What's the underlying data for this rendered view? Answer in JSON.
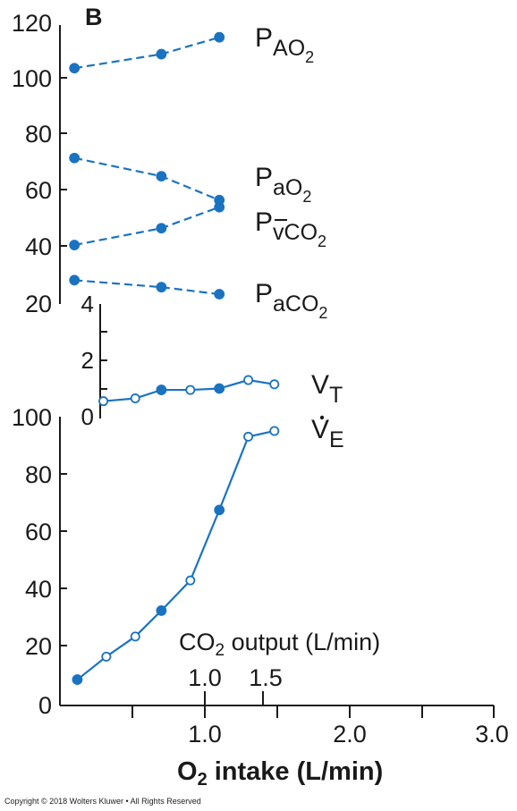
{
  "panel_letter": "B",
  "x_axis": {
    "label_main": "O",
    "label_sub": "2",
    "label_rest": " intake (L/min)",
    "ticks": [
      "1.0",
      "2.0",
      "3.0"
    ],
    "range": [
      0,
      3.0
    ]
  },
  "co2_axis": {
    "label_main": "CO",
    "label_sub": "2",
    "label_rest": " output (L/min)",
    "ticks": [
      "1.0",
      "1.5"
    ]
  },
  "series_labels": {
    "PAO2": {
      "main": "P",
      "sub": "AO",
      "subsub": "2"
    },
    "PaO2": {
      "main": "P",
      "sub": "aO",
      "subsub": "2"
    },
    "PvCO2": {
      "main": "P",
      "sub": "v",
      "sub_rest": "CO",
      "subsub": "2"
    },
    "PaCO2": {
      "main": "P",
      "sub": "aCO",
      "subsub": "2"
    },
    "VT": {
      "main": "V",
      "sub": "T"
    },
    "VE": {
      "main": "V",
      "sub": "E"
    }
  },
  "copyright": "Copyright © 2018 Wolters Kluwer • All Rights Reserved",
  "colors": {
    "series": "#1a73c1",
    "axis": "#1a1a1a"
  },
  "chart_data": [
    {
      "type": "line",
      "title": "",
      "xlabel": "O2 intake (L/min)",
      "ylabel": "",
      "xlim": [
        0,
        3.0
      ],
      "ylim": [
        20,
        120
      ],
      "ticks": [
        "20",
        "40",
        "60",
        "80",
        "100",
        "120"
      ],
      "line_style": "dashed",
      "series": [
        {
          "name": "PAO2",
          "x": [
            0.1,
            0.7,
            1.1
          ],
          "y": [
            104,
            109,
            115
          ],
          "markers": [
            "filled",
            "filled",
            "filled"
          ]
        },
        {
          "name": "PaO2",
          "x": [
            0.1,
            0.7,
            1.1
          ],
          "y": [
            72,
            65.5,
            57
          ],
          "markers": [
            "filled",
            "filled",
            "filled"
          ]
        },
        {
          "name": "PvCO2",
          "x": [
            0.1,
            0.7,
            1.1
          ],
          "y": [
            41,
            47,
            54.5
          ],
          "markers": [
            "filled",
            "filled",
            "filled"
          ]
        },
        {
          "name": "PaCO2",
          "x": [
            0.1,
            0.7,
            1.1
          ],
          "y": [
            28.5,
            26,
            23.5
          ],
          "markers": [
            "filled",
            "filled",
            "filled"
          ]
        }
      ]
    },
    {
      "type": "line",
      "title": "",
      "xlabel": "O2 intake (L/min)",
      "ylabel": "",
      "xlim": [
        0,
        3.0
      ],
      "ylim": [
        0,
        4
      ],
      "ticks": [
        "0",
        "2",
        "4"
      ],
      "series": [
        {
          "name": "VT",
          "x": [
            0.3,
            0.52,
            0.7,
            0.9,
            1.1,
            1.3,
            1.48
          ],
          "y": [
            0.55,
            0.65,
            0.95,
            0.95,
            1.0,
            1.3,
            1.15
          ],
          "markers": [
            "open",
            "open",
            "filled",
            "open",
            "filled",
            "open",
            "open"
          ]
        }
      ]
    },
    {
      "type": "line",
      "title": "",
      "xlabel": "O2 intake (L/min)",
      "ylabel": "",
      "xlim": [
        0,
        3.0
      ],
      "ylim": [
        0,
        100
      ],
      "ticks": [
        "0",
        "20",
        "40",
        "60",
        "80",
        "100"
      ],
      "series": [
        {
          "name": "VE",
          "x": [
            0.12,
            0.32,
            0.52,
            0.7,
            0.9,
            1.1,
            1.3,
            1.48
          ],
          "y": [
            9,
            17,
            24,
            33,
            43.5,
            68,
            93.5,
            95.5
          ],
          "markers": [
            "filled",
            "open",
            "open",
            "filled",
            "open",
            "filled",
            "open",
            "open"
          ]
        }
      ]
    }
  ]
}
